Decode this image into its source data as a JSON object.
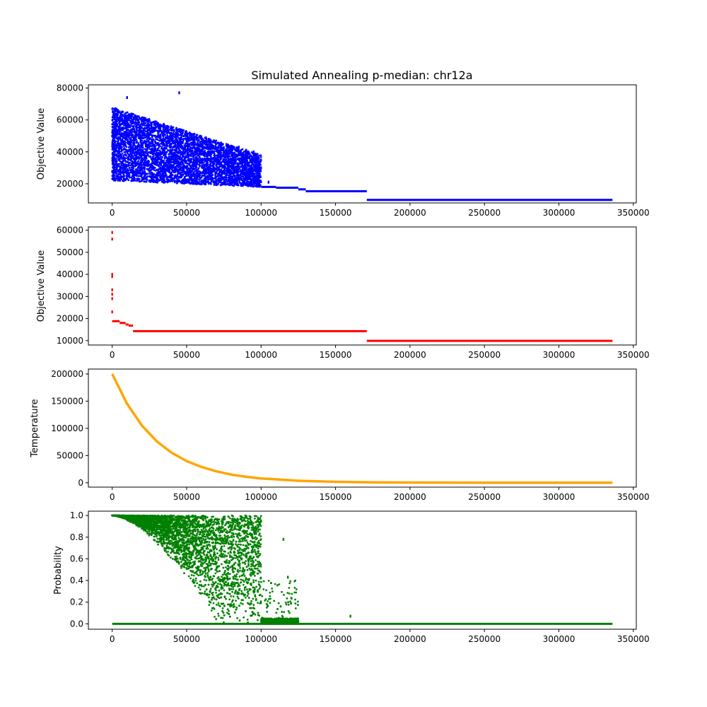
{
  "figure": {
    "title": "Simulated Annealing p-median: chr12a"
  },
  "chart_data": [
    {
      "type": "scatter",
      "title": "Simulated Annealing p-median: chr12a",
      "xlabel": "",
      "ylabel": "Objective Value",
      "xlim": [
        -16000,
        352000
      ],
      "ylim": [
        8000,
        82000
      ],
      "xticks": [
        0,
        50000,
        100000,
        150000,
        200000,
        250000,
        300000,
        350000
      ],
      "yticks": [
        20000,
        40000,
        60000,
        80000
      ],
      "color": "#0000ff",
      "regions": [
        {
          "x": [
            0,
            100000
          ],
          "y_min": [
            22000,
            18000
          ],
          "y_max": [
            68000,
            38000
          ]
        }
      ],
      "steps": [
        {
          "x": [
            100000,
            110000
          ],
          "y": 18000
        },
        {
          "x": [
            110000,
            125000
          ],
          "y": 17500
        },
        {
          "x": [
            125000,
            130000
          ],
          "y": 16500
        },
        {
          "x": [
            130000,
            171000
          ],
          "y": 15300
        },
        {
          "x": [
            171000,
            336000
          ],
          "y": 9900
        }
      ],
      "points": [
        {
          "x": 45000,
          "y": 77000
        },
        {
          "x": 10000,
          "y": 74000
        },
        {
          "x": 85000,
          "y": 43000
        },
        {
          "x": 90000,
          "y": 41000
        },
        {
          "x": 95000,
          "y": 40000
        },
        {
          "x": 100000,
          "y": 30000
        },
        {
          "x": 105000,
          "y": 21000
        }
      ]
    },
    {
      "type": "scatter",
      "xlabel": "",
      "ylabel": "Objective Value",
      "xlim": [
        -16000,
        352000
      ],
      "ylim": [
        8000,
        61500
      ],
      "xticks": [
        0,
        50000,
        100000,
        150000,
        200000,
        250000,
        300000,
        350000
      ],
      "yticks": [
        10000,
        20000,
        30000,
        40000,
        50000,
        60000
      ],
      "color": "#ff0000",
      "steps": [
        {
          "x": [
            0,
            5000
          ],
          "y": 18800
        },
        {
          "x": [
            5000,
            9000
          ],
          "y": 18000
        },
        {
          "x": [
            9000,
            11000
          ],
          "y": 17300
        },
        {
          "x": [
            11000,
            14000
          ],
          "y": 16800
        },
        {
          "x": [
            14000,
            171000
          ],
          "y": 14300
        },
        {
          "x": [
            171000,
            336000
          ],
          "y": 9900
        }
      ],
      "points": [
        {
          "x": 0,
          "y": 59000
        },
        {
          "x": 0,
          "y": 56000
        },
        {
          "x": 0,
          "y": 40000
        },
        {
          "x": 0,
          "y": 39000
        },
        {
          "x": 0,
          "y": 33000
        },
        {
          "x": 0,
          "y": 31000
        },
        {
          "x": 0,
          "y": 29000
        },
        {
          "x": 0,
          "y": 23000
        }
      ]
    },
    {
      "type": "line",
      "xlabel": "",
      "ylabel": "Temperature",
      "xlim": [
        -16000,
        352000
      ],
      "ylim": [
        -8000,
        209000
      ],
      "xticks": [
        0,
        50000,
        100000,
        150000,
        200000,
        250000,
        300000,
        350000
      ],
      "yticks": [
        0,
        50000,
        100000,
        150000,
        200000
      ],
      "color": "#ffa500",
      "x": [
        0,
        10000,
        20000,
        30000,
        40000,
        50000,
        60000,
        70000,
        80000,
        90000,
        100000,
        125000,
        150000,
        175000,
        200000,
        250000,
        300000,
        336000
      ],
      "y": [
        200000,
        145000,
        105000,
        76000,
        55000,
        40000,
        29000,
        21000,
        15000,
        11000,
        8000,
        3700,
        1700,
        800,
        400,
        100,
        20,
        0
      ]
    },
    {
      "type": "scatter",
      "xlabel": "",
      "ylabel": "Probability",
      "xlim": [
        -16000,
        352000
      ],
      "ylim": [
        -0.05,
        1.04
      ],
      "xticks": [
        0,
        50000,
        100000,
        150000,
        200000,
        250000,
        300000,
        350000
      ],
      "yticks": [
        0.0,
        0.2,
        0.4,
        0.6,
        0.8,
        1.0
      ],
      "color": "#008000",
      "regions": [
        {
          "x": [
            0,
            125000
          ],
          "y_min": [
            0.85,
            0.0
          ],
          "y_max": [
            1.0,
            1.0
          ]
        }
      ],
      "baseline": {
        "x": [
          0,
          336000
        ],
        "y": 0.0
      },
      "points": [
        {
          "x": 115000,
          "y": 0.78
        },
        {
          "x": 118000,
          "y": 0.43
        },
        {
          "x": 160000,
          "y": 0.07
        },
        {
          "x": 100000,
          "y": 0.95
        }
      ]
    }
  ]
}
